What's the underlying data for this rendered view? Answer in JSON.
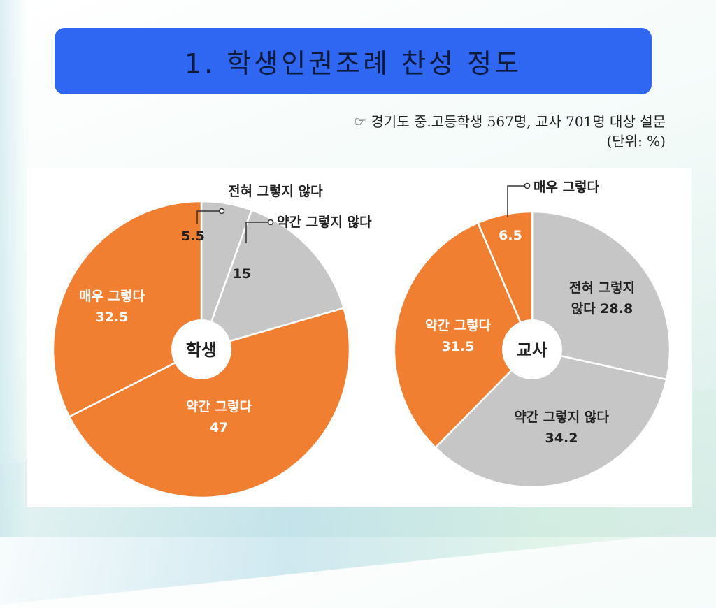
{
  "slide": {
    "title": "1. 학생인권조례 찬성 정도",
    "note_icon": "pointing-hand-icon",
    "note": "경기도 중.고등학생 567명, 교사 701명 대상 설문",
    "unit": "(단위: %)"
  },
  "colors": {
    "title_bg": "#2f66f2",
    "orange": "#f07f32",
    "gray": "#c6c6c6"
  },
  "chart_data": [
    {
      "type": "pie",
      "title": "",
      "center_label": "학생",
      "slices": [
        {
          "label": "전혀 그렇지 않다",
          "value": 5.5,
          "color": "#c6c6c6",
          "value_text": "5.5"
        },
        {
          "label": "약간 그렇지 않다",
          "value": 15,
          "color": "#c6c6c6",
          "value_text": "15"
        },
        {
          "label": "약간 그렇다",
          "value": 47,
          "color": "#f07f32",
          "value_text": "47"
        },
        {
          "label": "매우 그렇다",
          "value": 32.5,
          "color": "#f07f32",
          "value_text": "32.5"
        }
      ]
    },
    {
      "type": "pie",
      "title": "",
      "center_label": "교사",
      "slices": [
        {
          "label": "전혀 그렇지 않다",
          "value": 28.8,
          "color": "#c6c6c6",
          "value_text": "28.8"
        },
        {
          "label": "약간 그렇지 않다",
          "value": 34.2,
          "color": "#c6c6c6",
          "value_text": "34.2"
        },
        {
          "label": "약간 그렇다",
          "value": 31.5,
          "color": "#f07f32",
          "value_text": "31.5"
        },
        {
          "label": "매우 그렇다",
          "value": 6.5,
          "color": "#f07f32",
          "value_text": "6.5"
        }
      ]
    }
  ]
}
